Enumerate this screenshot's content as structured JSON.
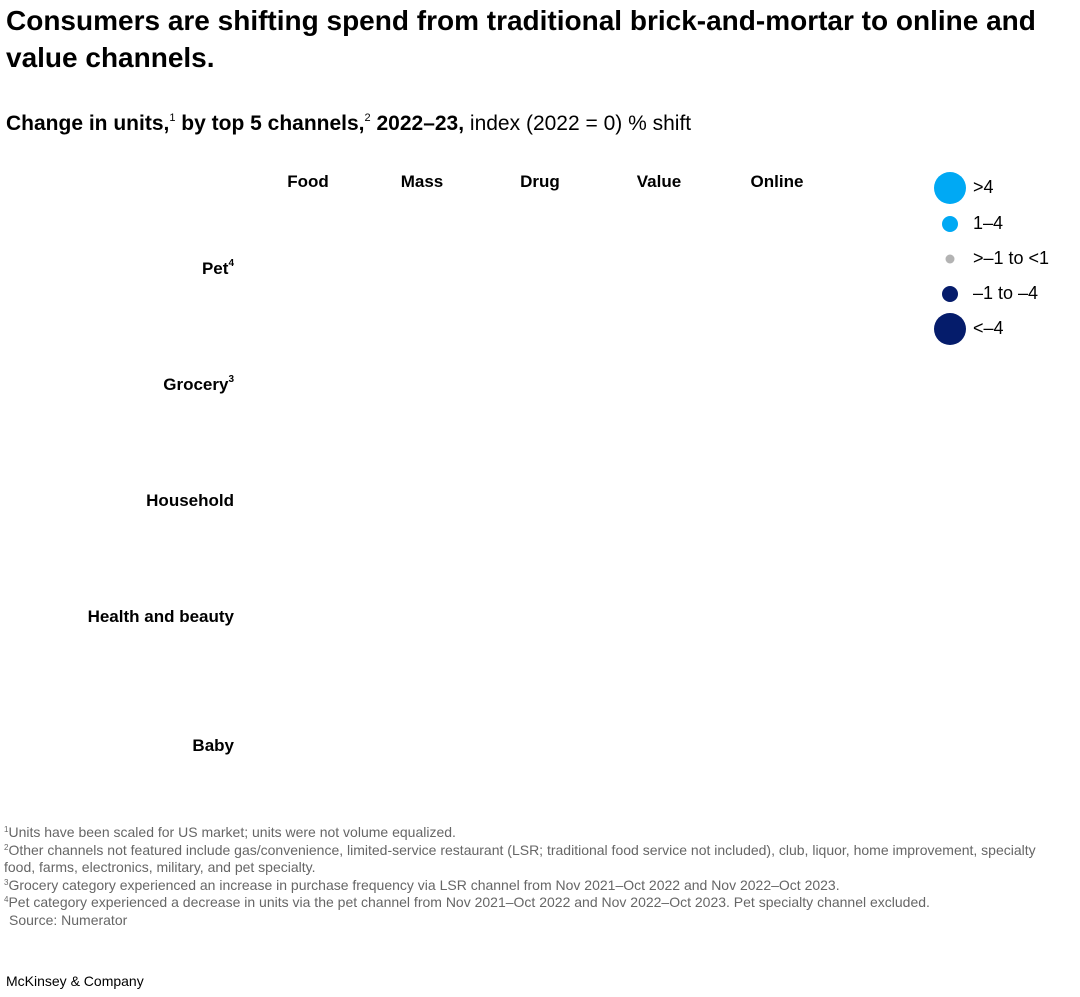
{
  "header": {
    "title": "Consumers are shifting spend from traditional brick-and-mortar to online and value channels.",
    "subtitle": [
      {
        "text": "Change in units,",
        "bold": true
      },
      {
        "text": "1",
        "sup": true
      },
      {
        "text": " by top 5 channels,",
        "bold": true
      },
      {
        "text": "2",
        "sup": true
      },
      {
        "text": " 2022–23,",
        "bold": true
      },
      {
        "text": " index (2022 = 0) % shift",
        "bold": false
      }
    ]
  },
  "columns": [
    "Food",
    "Mass",
    "Drug",
    "Value",
    "Online"
  ],
  "rows": [
    {
      "label": "Pet",
      "sup": "4"
    },
    {
      "label": "Grocery",
      "sup": "3"
    },
    {
      "label": "Household"
    },
    {
      "label": "Health and beauty"
    },
    {
      "label": "Baby"
    }
  ],
  "legend": [
    {
      "label": ">4",
      "color": "#00a9f4",
      "size": "large"
    },
    {
      "label": "1–4",
      "color": "#00a9f4",
      "size": "medium"
    },
    {
      "label": ">–1 to <1",
      "color": "#b3b3b3",
      "size": "small"
    },
    {
      "label": "–1 to –4",
      "color": "#051c6b",
      "size": "medium"
    },
    {
      "label": "<–4",
      "color": "#051c6b",
      "size": "large"
    }
  ],
  "footnotes": [
    {
      "num": "1",
      "text": "Units have been scaled for US market; units were not volume equalized."
    },
    {
      "num": "2",
      "text": "Other channels not featured include gas/convenience, limited-service restaurant (LSR; traditional food service not included), club, liquor, home improvement, specialty food, farms, electronics, military, and pet specialty."
    },
    {
      "num": "3",
      "text": "Grocery category experienced an increase in purchase frequency via LSR channel from Nov 2021–Oct 2022 and Nov 2022–Oct 2023."
    },
    {
      "num": "4",
      "text": "Pet category experienced a decrease in units via the pet channel from Nov 2021–Oct 2022 and Nov 2022–Oct 2023. Pet specialty channel excluded."
    }
  ],
  "source": "Source: Numerator",
  "footer": "McKinsey & Company"
}
